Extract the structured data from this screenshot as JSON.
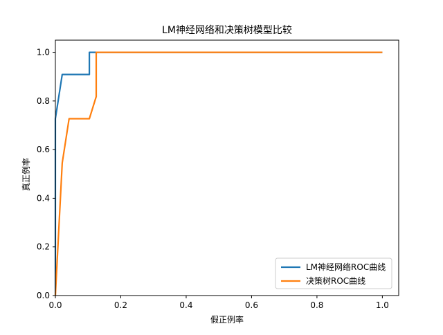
{
  "chart_data": {
    "type": "line",
    "title": "LM神经网络和决策树模型比较",
    "xlabel": "假正例率",
    "ylabel": "真正例率",
    "xlim": [
      0,
      1.05
    ],
    "ylim": [
      0,
      1.05
    ],
    "xticks": [
      0.0,
      0.2,
      0.4,
      0.6,
      0.8,
      1.0
    ],
    "yticks": [
      0.0,
      0.2,
      0.4,
      0.6,
      0.8,
      1.0
    ],
    "xtick_labels": [
      "0.0",
      "0.2",
      "0.4",
      "0.6",
      "0.8",
      "1.0"
    ],
    "ytick_labels": [
      "0.0",
      "0.2",
      "0.4",
      "0.6",
      "0.8",
      "1.0"
    ],
    "grid": false,
    "legend_position": "lower right",
    "series": [
      {
        "name": "LM神经网络ROC曲线",
        "color": "#1f77b4",
        "x": [
          0.0,
          0.0,
          0.021,
          0.021,
          0.104,
          0.104,
          1.0
        ],
        "y": [
          0.0,
          0.727,
          0.909,
          0.909,
          0.909,
          1.0,
          1.0
        ]
      },
      {
        "name": "决策树ROC曲线",
        "color": "#ff7f0e",
        "x": [
          0.0,
          0.021,
          0.042,
          0.104,
          0.125,
          0.125,
          1.0
        ],
        "y": [
          0.0,
          0.545,
          0.727,
          0.727,
          0.818,
          1.0,
          1.0
        ]
      }
    ]
  }
}
